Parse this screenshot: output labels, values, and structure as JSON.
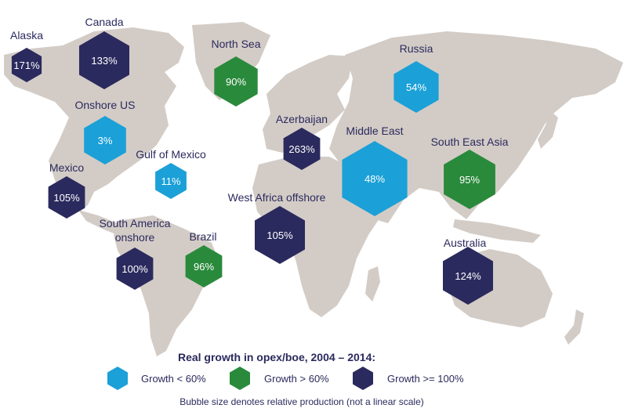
{
  "colors": {
    "land": "#d3ccc6",
    "low": "#1ba0d7",
    "mid": "#2a8a3c",
    "high": "#2b2a5e"
  },
  "regions": [
    {
      "id": "alaska",
      "label": "Alaska",
      "value": "171%",
      "category": "high"
    },
    {
      "id": "canada",
      "label": "Canada",
      "value": "133%",
      "category": "high"
    },
    {
      "id": "north-sea",
      "label": "North Sea",
      "value": "90%",
      "category": "mid"
    },
    {
      "id": "russia",
      "label": "Russia",
      "value": "54%",
      "category": "low"
    },
    {
      "id": "onshore-us",
      "label": "Onshore US",
      "value": "3%",
      "category": "low"
    },
    {
      "id": "azerbaijan",
      "label": "Azerbaijan",
      "value": "263%",
      "category": "high"
    },
    {
      "id": "middle-east",
      "label": "Middle East",
      "value": "48%",
      "category": "low"
    },
    {
      "id": "gulf-of-mexico",
      "label": "Gulf of Mexico",
      "value": "11%",
      "category": "low"
    },
    {
      "id": "south-east-asia",
      "label": "South East Asia",
      "value": "95%",
      "category": "mid"
    },
    {
      "id": "mexico",
      "label": "Mexico",
      "value": "105%",
      "category": "high"
    },
    {
      "id": "west-africa-offshore",
      "label": "West Africa offshore",
      "value": "105%",
      "category": "high"
    },
    {
      "id": "south-america-onshore",
      "label": "South America\nonshore",
      "value": "100%",
      "category": "high"
    },
    {
      "id": "brazil",
      "label": "Brazil",
      "value": "96%",
      "category": "mid"
    },
    {
      "id": "australia",
      "label": "Australia",
      "value": "124%",
      "category": "high"
    }
  ],
  "legend": {
    "title": "Real growth in opex/boe, 2004 – 2014:",
    "items": [
      {
        "category": "low",
        "label": "Growth < 60%"
      },
      {
        "category": "mid",
        "label": "Growth > 60%"
      },
      {
        "category": "high",
        "label": "Growth >= 100%"
      }
    ]
  },
  "footnote": "Bubble size denotes relative production (not a linear scale)"
}
